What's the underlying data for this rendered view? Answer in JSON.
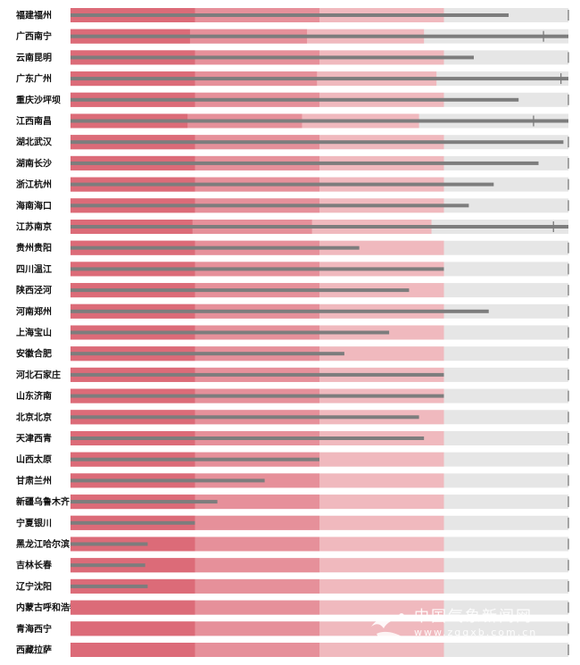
{
  "chart_data": {
    "type": "bar",
    "subtype": "bullet",
    "title": "",
    "xlabel": "",
    "ylabel": "",
    "xlim": [
      0,
      100
    ],
    "range_bands": [
      0.25,
      0.5,
      0.75,
      1.0
    ],
    "colors": {
      "band1": "#dc6b78",
      "band2": "#e6909a",
      "band3": "#f0b9be",
      "band4": "#e6e6e6",
      "value_bar": "#7d7d7d",
      "marker": "#7a7a7a"
    },
    "categories": [
      "福建福州",
      "广西南宁",
      "云南昆明",
      "广东广州",
      "重庆沙坪坝",
      "江西南昌",
      "湖北武汉",
      "湖南长沙",
      "浙江杭州",
      "海南海口",
      "江苏南京",
      "贵州贵阳",
      "四川温江",
      "陕西泾河",
      "河南郑州",
      "上海宝山",
      "安徽合肥",
      "河北石家庄",
      "山东济南",
      "北京北京",
      "天津西青",
      "山西太原",
      "甘肃兰州",
      "新疆乌鲁木齐",
      "宁夏银川",
      "黑龙江哈尔滨",
      "吉林长春",
      "辽宁沈阳",
      "内蒙古呼和浩特",
      "青海西宁",
      "西藏拉萨"
    ],
    "max_values": [
      100,
      100,
      100,
      100,
      100,
      100,
      100,
      100,
      100,
      100,
      100,
      100,
      100,
      100,
      100,
      100,
      100,
      100,
      100,
      100,
      100,
      100,
      100,
      100,
      100,
      100,
      100,
      100,
      100,
      100,
      100
    ],
    "values": [
      88,
      100,
      81,
      100,
      90,
      100,
      99,
      94,
      85,
      80,
      100,
      58,
      75,
      68,
      84,
      64,
      55,
      75,
      75,
      70,
      71,
      50,
      39,
      29.5,
      25,
      15.5,
      15,
      15.5,
      0,
      0,
      0
    ],
    "markers": [
      100,
      95,
      100,
      98.5,
      100,
      93,
      100,
      100,
      100,
      100,
      97,
      100,
      100,
      100,
      100,
      100,
      100,
      100,
      100,
      100,
      100,
      100,
      100,
      100,
      100,
      100,
      100,
      100,
      100,
      100,
      100
    ],
    "band_stops": [
      [
        25,
        50,
        75,
        100
      ],
      [
        24,
        47.5,
        71,
        100
      ],
      [
        25,
        50,
        75,
        100
      ],
      [
        25,
        49.5,
        73.5,
        100
      ],
      [
        25,
        50,
        75,
        100
      ],
      [
        23.5,
        46.5,
        70,
        100
      ],
      [
        25,
        50,
        75,
        100
      ],
      [
        25,
        50,
        75,
        100
      ],
      [
        25,
        50,
        75,
        100
      ],
      [
        25,
        50,
        75,
        100
      ],
      [
        24.5,
        48.5,
        72.5,
        100
      ],
      [
        25,
        50,
        75,
        100
      ],
      [
        25,
        50,
        75,
        100
      ],
      [
        25,
        50,
        75,
        100
      ],
      [
        25,
        50,
        75,
        100
      ],
      [
        25,
        50,
        75,
        100
      ],
      [
        25,
        50,
        75,
        100
      ],
      [
        25,
        50,
        75,
        100
      ],
      [
        25,
        50,
        75,
        100
      ],
      [
        25,
        50,
        75,
        100
      ],
      [
        25,
        50,
        75,
        100
      ],
      [
        25,
        50,
        75,
        100
      ],
      [
        25,
        50,
        75,
        100
      ],
      [
        25,
        50,
        75,
        100
      ],
      [
        25,
        50,
        75,
        100
      ],
      [
        25,
        50,
        75,
        100
      ],
      [
        25,
        50,
        75,
        100
      ],
      [
        25,
        50,
        75,
        100
      ],
      [
        25,
        50,
        75,
        100
      ],
      [
        25,
        50,
        75,
        100
      ],
      [
        25,
        50,
        75,
        100
      ]
    ]
  },
  "watermark": {
    "text": "中国气象新闻网",
    "url": "www.zgqxb.com.cn"
  }
}
